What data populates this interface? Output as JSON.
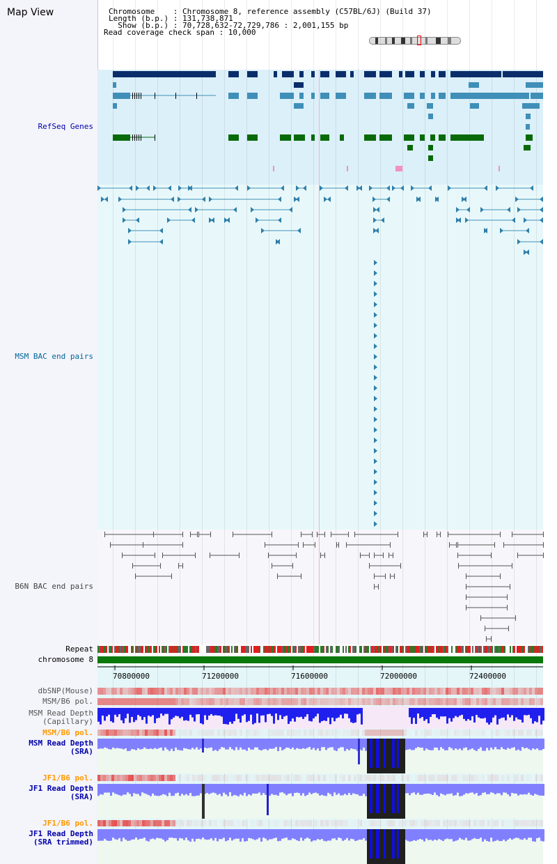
{
  "header": {
    "title": "Map View",
    "chromosome_line": "Chromosome    : Chromosome 8, reference assembly (C57BL/6J) (Build 37)",
    "length_line": "Length (b.p.) : 131,738,871",
    "show_line": "  Show (b.p.) : 70,728,632-72,729,786 : 2,001,155 bp",
    "coverage_line": "Read coverage check span : 10,000"
  },
  "tracks": {
    "refseq": "RefSeq Genes",
    "msm_bac": "MSM BAC end pairs",
    "b6n_bac": "B6N BAC end pairs",
    "repeat": "Repeat",
    "chromosome": "chromosome 8",
    "dbsnp": "dbSNP(Mouse)",
    "msm_b6_pol_1": "MSM/B6 pol.",
    "msm_read_depth_cap": "MSM Read Depth\n(Capillary)",
    "msm_b6_pol_2": "MSM/B6 pol.",
    "msm_read_depth_sra": "MSM Read Depth\n(SRA)",
    "jf1_b6_pol_1": "JF1/B6 pol.",
    "jf1_read_depth_sra": "JF1 Read Depth\n(SRA)",
    "jf1_b6_pol_2": "JF1/B6 pol.",
    "jf1_read_depth_trim": "JF1 Read Depth\n(SRA trimmed)"
  },
  "axis": {
    "ticks": [
      "70800000",
      "71200000",
      "71600000",
      "72000000",
      "72400000"
    ]
  },
  "colors": {
    "refseq_bg": "#dcf0fa",
    "msm_bac_bg": "#e8f8fa",
    "b6n_bac_bg": "#f6f6fb",
    "refseq_label": "#0000aa",
    "msm_label": "#006699",
    "b6n_label": "#444444",
    "pol_label": "#ff9900",
    "depth_label": "#0000aa",
    "navy": "#0b2e6b",
    "teal": "#3f8fb8",
    "green": "#086a08",
    "depth_blue": "#2020ee",
    "depth_light": "#8080ff"
  }
}
